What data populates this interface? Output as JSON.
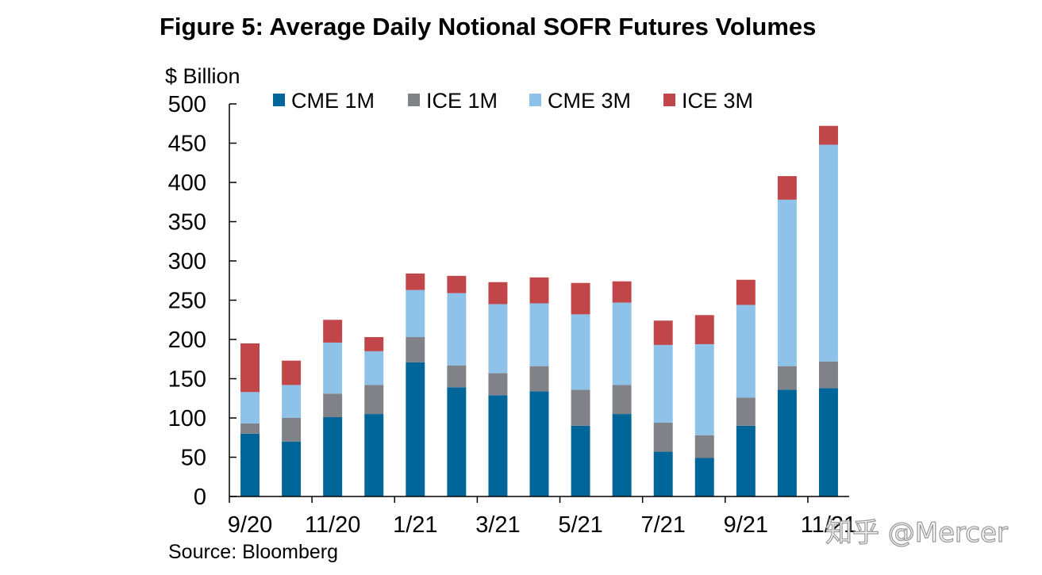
{
  "colors": {
    "cme_1m": "#006699",
    "ice_1m": "#808288",
    "cme_3m": "#8ec2e8",
    "ice_3m": "#c0464a",
    "axis": "#000000"
  },
  "chart_data": {
    "type": "bar",
    "stacked": true,
    "title": "Figure 5: Average Daily Notional SOFR Futures Volumes",
    "ylabel": "$ Billion",
    "xlabel": "",
    "ylim": [
      0,
      500
    ],
    "yticks": [
      0,
      50,
      100,
      150,
      200,
      250,
      300,
      350,
      400,
      450,
      500
    ],
    "grid": false,
    "legend_position": "top",
    "categories": [
      "9/20",
      "10/20",
      "11/20",
      "12/20",
      "1/21",
      "2/21",
      "3/21",
      "4/21",
      "5/21",
      "6/21",
      "7/21",
      "8/21",
      "9/21",
      "10/21",
      "11/21"
    ],
    "x_tick_labels": [
      "9/20",
      "11/20",
      "1/21",
      "3/21",
      "5/21",
      "7/21",
      "9/21",
      "11/21"
    ],
    "series": [
      {
        "name": "CME 1M",
        "values": [
          80,
          70,
          101,
          105,
          171,
          139,
          129,
          134,
          90,
          105,
          57,
          49,
          90,
          136,
          138
        ]
      },
      {
        "name": "ICE 1M",
        "values": [
          13,
          30,
          30,
          37,
          32,
          28,
          28,
          32,
          46,
          37,
          37,
          29,
          36,
          30,
          34
        ]
      },
      {
        "name": "CME 3M",
        "values": [
          40,
          42,
          65,
          43,
          60,
          92,
          88,
          80,
          96,
          105,
          99,
          116,
          118,
          212,
          276
        ]
      },
      {
        "name": "ICE 3M",
        "values": [
          62,
          31,
          29,
          18,
          21,
          22,
          28,
          33,
          40,
          27,
          31,
          37,
          32,
          30,
          24
        ]
      }
    ]
  },
  "source": {
    "label": "Source: Bloomberg"
  },
  "watermark": {
    "text": "知乎 @Mercer"
  }
}
